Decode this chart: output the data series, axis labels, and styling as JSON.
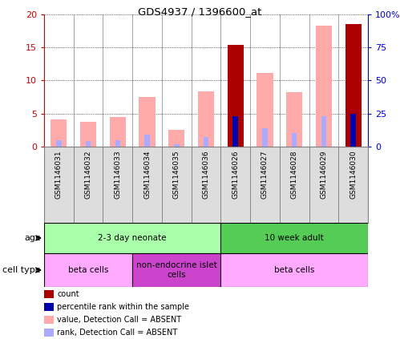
{
  "title": "GDS4937 / 1396600_at",
  "samples": [
    "GSM1146031",
    "GSM1146032",
    "GSM1146033",
    "GSM1146034",
    "GSM1146035",
    "GSM1146036",
    "GSM1146026",
    "GSM1146027",
    "GSM1146028",
    "GSM1146029",
    "GSM1146030"
  ],
  "value_absent": [
    4.1,
    3.8,
    4.5,
    7.5,
    2.5,
    8.4,
    null,
    11.2,
    8.2,
    18.3,
    null
  ],
  "rank_absent_pct": [
    5.0,
    4.0,
    5.0,
    9.0,
    2.0,
    7.5,
    null,
    14.0,
    10.0,
    23.0,
    null
  ],
  "count_present": [
    null,
    null,
    null,
    null,
    null,
    null,
    15.4,
    null,
    null,
    null,
    18.6
  ],
  "rank_present_pct": [
    null,
    null,
    null,
    null,
    null,
    null,
    23.0,
    null,
    null,
    null,
    25.0
  ],
  "ylim_left": [
    0,
    20
  ],
  "ylim_right": [
    0,
    100
  ],
  "yticks_left": [
    0,
    5,
    10,
    15,
    20
  ],
  "yticks_right": [
    0,
    25,
    50,
    75,
    100
  ],
  "ytick_labels_left": [
    "0",
    "5",
    "10",
    "15",
    "20"
  ],
  "ytick_labels_right": [
    "0",
    "25",
    "50",
    "75",
    "100%"
  ],
  "left_axis_color": "#cc0000",
  "right_axis_color": "#0000cc",
  "color_value_absent": "#ffaaaa",
  "color_rank_absent": "#aaaaff",
  "color_count_present": "#aa0000",
  "color_rank_present": "#0000aa",
  "age_groups": [
    {
      "label": "2-3 day neonate",
      "start": 0,
      "end": 6,
      "color": "#aaffaa"
    },
    {
      "label": "10 week adult",
      "start": 6,
      "end": 11,
      "color": "#55cc55"
    }
  ],
  "cell_type_groups": [
    {
      "label": "beta cells",
      "start": 0,
      "end": 3,
      "color": "#ffaaff"
    },
    {
      "label": "non-endocrine islet\ncells",
      "start": 3,
      "end": 6,
      "color": "#cc44cc"
    },
    {
      "label": "beta cells",
      "start": 6,
      "end": 11,
      "color": "#ffaaff"
    }
  ],
  "legend_items": [
    {
      "color": "#aa0000",
      "label": "count"
    },
    {
      "color": "#0000aa",
      "label": "percentile rank within the sample"
    },
    {
      "color": "#ffaaaa",
      "label": "value, Detection Call = ABSENT"
    },
    {
      "color": "#aaaaff",
      "label": "rank, Detection Call = ABSENT"
    }
  ],
  "background_color": "#ffffff"
}
